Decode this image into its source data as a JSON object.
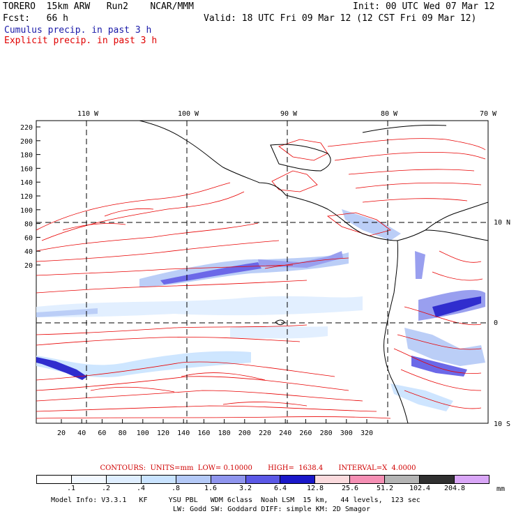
{
  "header": {
    "model": "TORERO  15km ARW   Run2    NCAR/MMM",
    "init": "Init: 00 UTC Wed 07 Mar 12",
    "fcst": "Fcst:   66 h",
    "valid": "Valid: 18 UTC Fri 09 Mar 12 (12 CST Fri 09 Mar 12)",
    "field_blue": "Cumulus precip. in past 3 h",
    "field_red": "Explicit precip. in past 3 h"
  },
  "map": {
    "lon_labels": [
      "110 W",
      "100 W",
      "90 W",
      "80 W",
      "70 W"
    ],
    "lat_labels": [
      "10 N",
      "0",
      "10 S"
    ],
    "y_ticks": [
      "220",
      "200",
      "180",
      "160",
      "140",
      "120",
      "100",
      "80",
      "60",
      "40",
      "20"
    ],
    "x_ticks": [
      "20",
      "40",
      "60",
      "80",
      "100",
      "120",
      "140",
      "160",
      "180",
      "200",
      "220",
      "240",
      "260",
      "280",
      "300",
      "320"
    ]
  },
  "contours_line": "CONTOURS:  UNITS=mm  LOW= 0.10000       HIGH=  1638.4       INTERVAL=X  4.0000",
  "colorbar": {
    "labels": [
      ".1",
      ".2",
      ".4",
      ".8",
      "1.6",
      "3.2",
      "6.4",
      "12.8",
      "25.6",
      "51.2",
      "102.4",
      "204.8"
    ],
    "colors": [
      "#ffffff",
      "#f2f8ff",
      "#dfeeff",
      "#c9e3ff",
      "#b4c9f7",
      "#8f95ee",
      "#5b58e6",
      "#1a17c9",
      "#fadadd",
      "#f58fb4",
      "#b4b4b4",
      "#303030",
      "#d9a6f7"
    ],
    "unit": "mm"
  },
  "footer": {
    "line1": "Model Info: V3.3.1   KF     YSU PBL   WDM 6class  Noah LSM  15 km,   44 levels,  123 sec",
    "line2": "LW: Godd SW: Goddard DIFF: simple KM: 2D Smagor"
  }
}
